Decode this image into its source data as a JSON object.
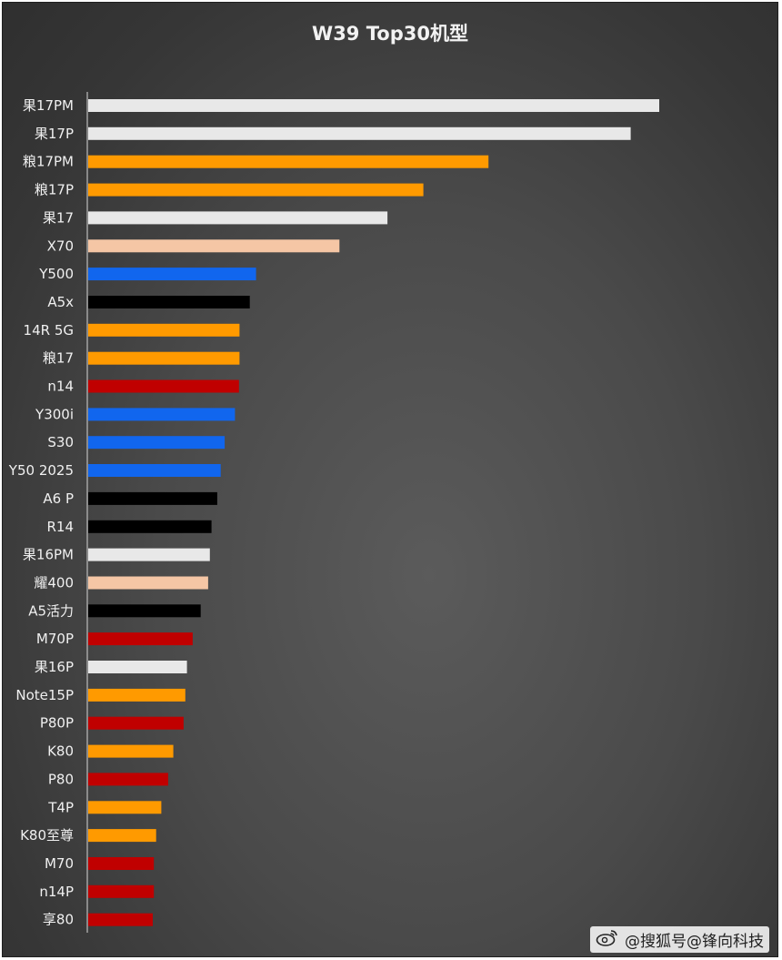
{
  "chart_data": {
    "type": "bar",
    "orientation": "horizontal",
    "title": "W39 Top30机型",
    "xlabel": "",
    "ylabel": "",
    "grid": false,
    "legend": "none",
    "xlim": [
      0,
      100
    ],
    "categories": [
      "果17PM",
      "果17P",
      "粮17PM",
      "粮17P",
      "果17",
      "X70",
      "Y500",
      "A5x",
      "14R 5G",
      "粮17",
      "n14",
      "Y300i",
      "S30",
      "Y50 2025",
      "A6 P",
      "R14",
      "果16PM",
      "耀400",
      "A5活力",
      "M70P",
      "果16P",
      "Note15P",
      "P80P",
      "K80",
      "P80",
      "T4P",
      "K80至尊",
      "M70",
      "n14P",
      "享80"
    ],
    "values": [
      100,
      95,
      70.1,
      58.7,
      52.4,
      44,
      29.4,
      28.3,
      26.5,
      26.5,
      26.4,
      25.7,
      23.9,
      23.2,
      22.6,
      21.6,
      21.3,
      21,
      19.7,
      18.3,
      17.3,
      17,
      16.7,
      14.9,
      14,
      12.8,
      11.9,
      11.5,
      11.5,
      11.3
    ],
    "colors": [
      "#e8e8e8",
      "#e8e8e8",
      "#ff9a00",
      "#ff9a00",
      "#e8e8e8",
      "#f5c6a5",
      "#1166ee",
      "#000000",
      "#ff9a00",
      "#ff9a00",
      "#c00000",
      "#1166ee",
      "#1166ee",
      "#1166ee",
      "#000000",
      "#000000",
      "#e8e8e8",
      "#f5c6a5",
      "#000000",
      "#c00000",
      "#e8e8e8",
      "#ff9a00",
      "#c00000",
      "#ff9a00",
      "#c00000",
      "#ff9a00",
      "#ff9a00",
      "#c00000",
      "#c00000",
      "#c00000"
    ]
  },
  "watermark": {
    "text": "@搜狐号@锋向科技",
    "icon": "weibo-icon"
  }
}
